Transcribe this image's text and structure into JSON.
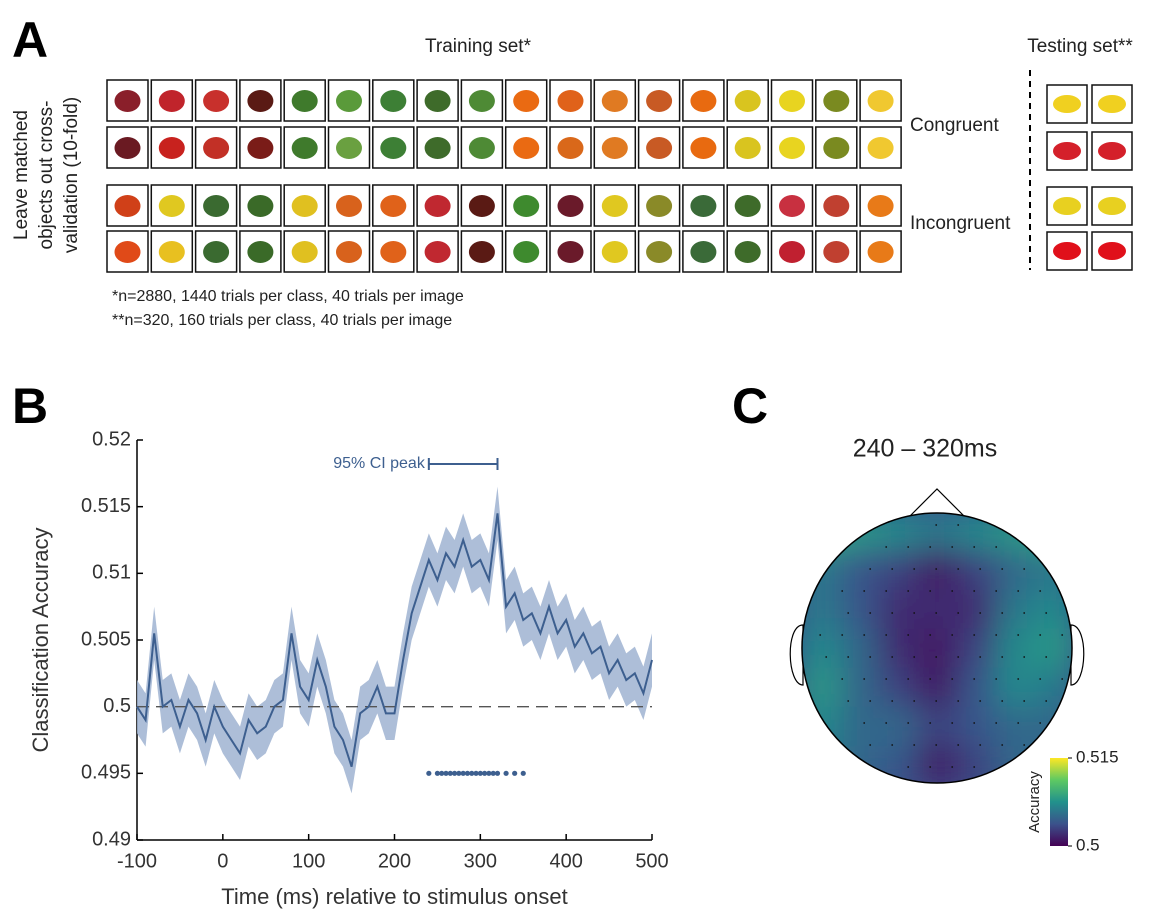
{
  "panel_labels": [
    "A",
    "B",
    "C"
  ],
  "panel_a": {
    "training_title": "Training set*",
    "testing_title": "Testing set**",
    "y_label_lines": [
      "Leave matched",
      "objects out cross-",
      "validation (10-fold)"
    ],
    "row_labels": [
      "Congruent",
      "Incongruent"
    ],
    "footnotes": [
      "*n=2880, 1440 trials per class, 40 trials per image",
      "**n=320, 160 trials per class, 40 trials per image"
    ]
  },
  "chart_data": [
    {
      "type": "line",
      "xlabel": "Time (ms) relative to stimulus onset",
      "ylabel": "Classification Accuracy",
      "annotation": "95% CI peak",
      "ci_peak": [
        240,
        320
      ],
      "color": "#3d5f8f",
      "band_color": "#9fb3d1",
      "x": [
        -100,
        -90,
        -80,
        -70,
        -60,
        -50,
        -40,
        -30,
        -20,
        -10,
        0,
        10,
        20,
        30,
        40,
        50,
        60,
        70,
        80,
        90,
        100,
        110,
        120,
        130,
        140,
        150,
        160,
        170,
        180,
        190,
        200,
        210,
        220,
        230,
        240,
        250,
        260,
        270,
        280,
        290,
        300,
        310,
        320,
        330,
        340,
        350,
        360,
        370,
        380,
        390,
        400,
        410,
        420,
        430,
        440,
        450,
        460,
        470,
        480,
        490,
        500
      ],
      "values": [
        0.5,
        0.499,
        0.5055,
        0.5,
        0.5005,
        0.4985,
        0.5005,
        0.4995,
        0.4975,
        0.5,
        0.4985,
        0.4975,
        0.4965,
        0.499,
        0.498,
        0.4985,
        0.5,
        0.5005,
        0.5055,
        0.5015,
        0.5005,
        0.5035,
        0.5015,
        0.4985,
        0.4975,
        0.4955,
        0.4995,
        0.5,
        0.5015,
        0.4995,
        0.4995,
        0.5035,
        0.507,
        0.509,
        0.511,
        0.5095,
        0.5115,
        0.5105,
        0.5125,
        0.5105,
        0.511,
        0.5095,
        0.5145,
        0.5075,
        0.5085,
        0.5065,
        0.507,
        0.5055,
        0.5075,
        0.5055,
        0.5065,
        0.5045,
        0.5055,
        0.504,
        0.5045,
        0.5025,
        0.5035,
        0.502,
        0.5025,
        0.501,
        0.5035
      ],
      "ci_lower": [
        0.498,
        0.497,
        0.5035,
        0.498,
        0.4985,
        0.4965,
        0.4985,
        0.4975,
        0.4955,
        0.498,
        0.4965,
        0.4955,
        0.4945,
        0.497,
        0.496,
        0.4965,
        0.498,
        0.4985,
        0.5035,
        0.4995,
        0.4985,
        0.5015,
        0.4995,
        0.4965,
        0.4955,
        0.4935,
        0.4975,
        0.498,
        0.4995,
        0.4975,
        0.4975,
        0.5015,
        0.505,
        0.507,
        0.509,
        0.5075,
        0.5095,
        0.5085,
        0.5105,
        0.5085,
        0.509,
        0.5075,
        0.5125,
        0.5055,
        0.5065,
        0.5045,
        0.505,
        0.5035,
        0.5055,
        0.5035,
        0.5045,
        0.5025,
        0.5035,
        0.502,
        0.5025,
        0.5005,
        0.5015,
        0.5,
        0.5005,
        0.499,
        0.5015
      ],
      "ci_upper": [
        0.502,
        0.501,
        0.5075,
        0.502,
        0.5025,
        0.5005,
        0.5025,
        0.5015,
        0.4995,
        0.502,
        0.5005,
        0.4995,
        0.4985,
        0.501,
        0.5,
        0.5005,
        0.502,
        0.5025,
        0.5075,
        0.5035,
        0.5025,
        0.5055,
        0.5035,
        0.5005,
        0.4995,
        0.4975,
        0.5015,
        0.502,
        0.5035,
        0.5015,
        0.5015,
        0.5055,
        0.509,
        0.511,
        0.513,
        0.5115,
        0.5135,
        0.5125,
        0.5145,
        0.5125,
        0.513,
        0.5115,
        0.5165,
        0.5095,
        0.5105,
        0.5085,
        0.509,
        0.5075,
        0.5095,
        0.5075,
        0.5085,
        0.5065,
        0.5075,
        0.506,
        0.5065,
        0.5045,
        0.5055,
        0.504,
        0.5045,
        0.503,
        0.5055
      ],
      "reference_line": 0.5,
      "significant_y": 0.495,
      "significant_x": [
        240,
        250,
        255,
        260,
        265,
        270,
        275,
        280,
        285,
        290,
        295,
        300,
        305,
        310,
        315,
        320,
        330,
        340,
        350
      ],
      "xlim": [
        -100,
        500
      ],
      "xticks": [
        -100,
        0,
        100,
        200,
        300,
        400,
        500
      ],
      "ylim": [
        0.49,
        0.52
      ],
      "yticks": [
        0.49,
        0.495,
        0.5,
        0.505,
        0.51,
        0.515,
        0.52
      ]
    },
    {
      "type": "topomap",
      "title": "240 – 320ms",
      "colorbar_label": "Accuracy",
      "colormap": "viridis",
      "clim": [
        0.5,
        0.515
      ],
      "cticks": [
        0.515,
        0.5
      ],
      "values": [
        [
          0.509,
          0.508,
          0.507,
          0.506,
          0.507,
          0.508,
          0.509
        ],
        [
          0.506,
          0.504,
          0.503,
          0.501,
          0.503,
          0.505,
          0.506
        ],
        [
          0.506,
          0.504,
          0.502,
          0.502,
          0.502,
          0.506,
          0.507
        ],
        [
          0.507,
          0.505,
          0.502,
          0.501,
          0.503,
          0.507,
          0.508
        ],
        [
          0.508,
          0.505,
          0.503,
          0.501,
          0.504,
          0.507,
          0.506
        ],
        [
          0.507,
          0.505,
          0.505,
          0.503,
          0.504,
          0.505,
          0.505
        ],
        [
          0.506,
          0.505,
          0.504,
          0.501,
          0.503,
          0.505,
          0.505
        ]
      ]
    }
  ]
}
